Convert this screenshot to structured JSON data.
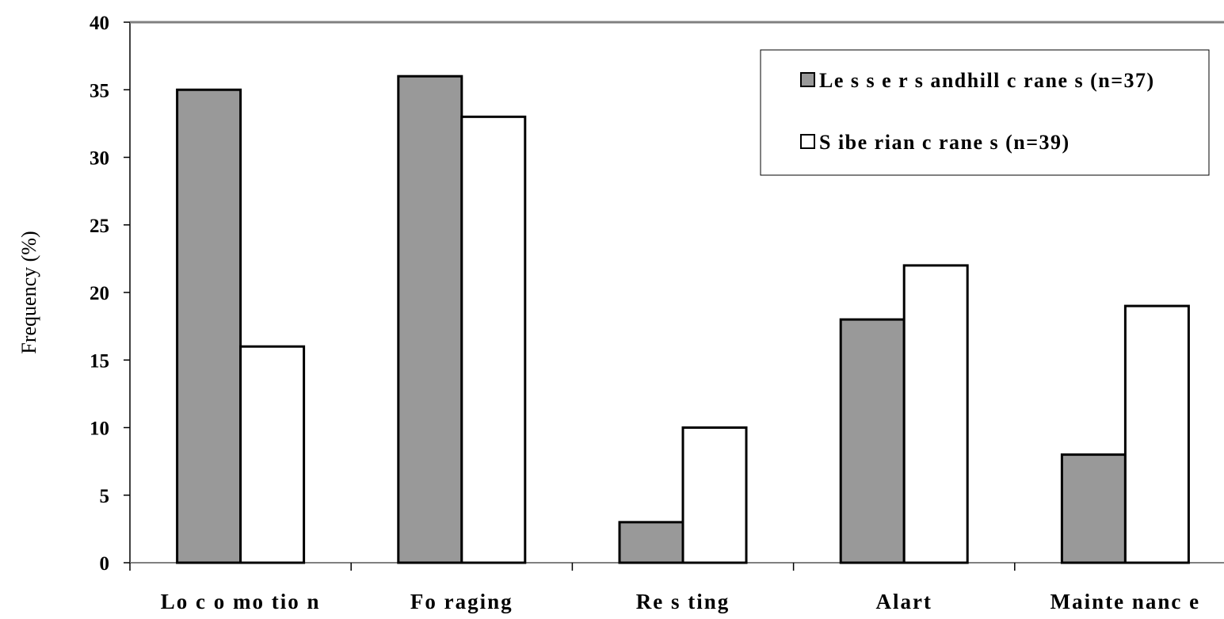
{
  "chart_data": {
    "type": "bar",
    "categories": [
      "Lo c o mo tio n",
      "Fo raging",
      "Re s ting",
      "Alart",
      "Mainte nanc e"
    ],
    "series": [
      {
        "name": "Le s s e r s andhill c rane s (n=37)",
        "color": "#999999",
        "values": [
          35,
          36,
          3,
          18,
          8
        ]
      },
      {
        "name": "S ibe rian c rane s (n=39)",
        "color": "#ffffff",
        "values": [
          16,
          33,
          10,
          22,
          19
        ]
      }
    ],
    "ylabel": "Frequency (%)",
    "ylim": [
      0,
      40
    ],
    "yticks": [
      0,
      5,
      10,
      15,
      20,
      25,
      30,
      35,
      40
    ],
    "legend_position": "top-right",
    "grid": false
  }
}
